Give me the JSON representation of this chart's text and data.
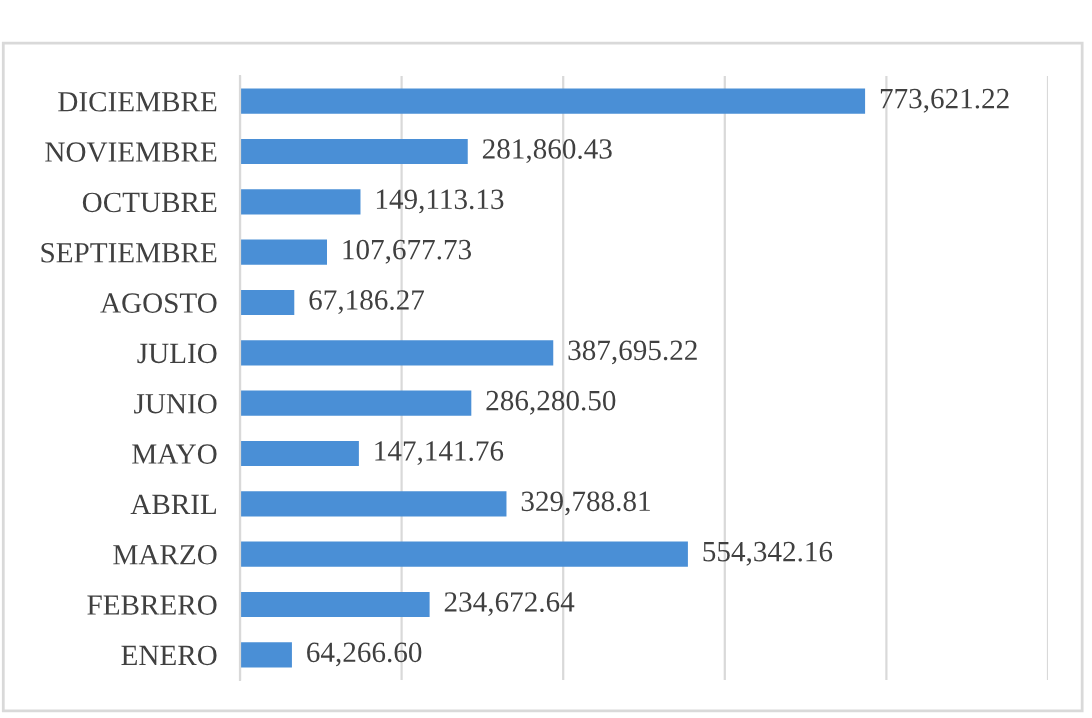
{
  "chart_data": {
    "type": "bar",
    "orientation": "horizontal",
    "categories": [
      "DICIEMBRE",
      "NOVIEMBRE",
      "OCTUBRE",
      "SEPTIEMBRE",
      "AGOSTO",
      "JULIO",
      "JUNIO",
      "MAYO",
      "ABRIL",
      "MARZO",
      "FEBRERO",
      "ENERO"
    ],
    "values": [
      773621.22,
      281860.43,
      149113.13,
      107677.73,
      67186.27,
      387695.22,
      286280.5,
      147141.76,
      329788.81,
      554342.16,
      234672.64,
      64266.6
    ],
    "value_labels": [
      "773,621.22",
      "281,860.43",
      "149,113.13",
      "107,677.73",
      "67,186.27",
      "387,695.22",
      "286,280.50",
      "147,141.76",
      "329,788.81",
      "554,342.16",
      "234,672.64",
      "64,266.60"
    ],
    "color": "#4a8fd6",
    "xlim": [
      0,
      1000000
    ],
    "xticks": [
      {
        "value": 0,
        "label": null
      },
      {
        "value": 200000,
        "label": null
      },
      {
        "value": 400000,
        "label": null
      },
      {
        "value": 600000,
        "label": null
      },
      {
        "value": 800000,
        "label": null
      },
      {
        "value": 1000000,
        "label": null
      }
    ],
    "grid": "x",
    "tick_labels": "y"
  }
}
